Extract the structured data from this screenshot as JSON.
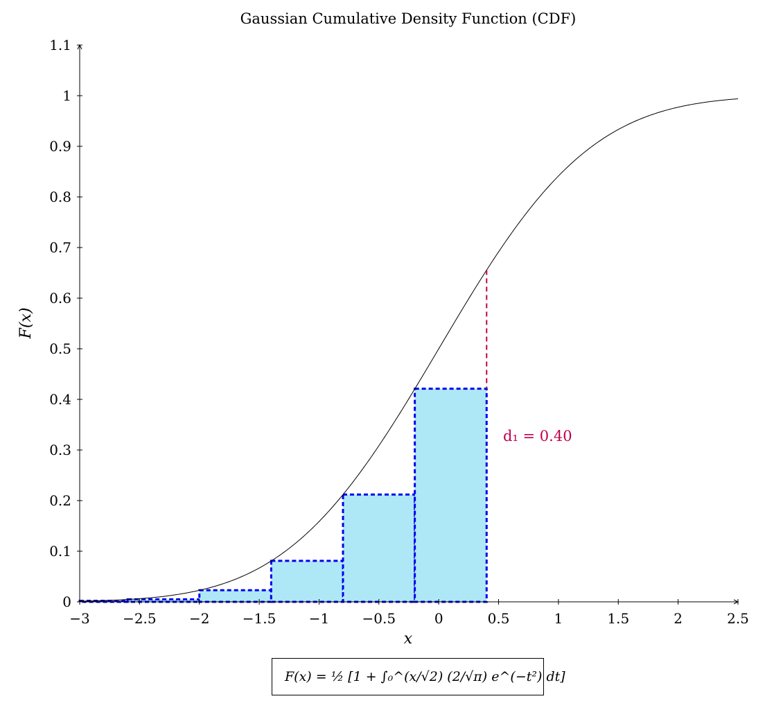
{
  "chart_data": {
    "type": "line",
    "title": "Gaussian Cumulative Density Function (CDF)",
    "xlabel": "x",
    "ylabel": "F(x)",
    "xlim": [
      -3,
      2.5
    ],
    "ylim": [
      0,
      1.1
    ],
    "x_ticks": [
      "−3",
      "−2.5",
      "−2",
      "−1.5",
      "−1",
      "−0.5",
      "0",
      "0.5",
      "1",
      "1.5",
      "2",
      "2.5"
    ],
    "x_tick_values": [
      -3,
      -2.5,
      -2,
      -1.5,
      -1,
      -0.5,
      0,
      0.5,
      1,
      1.5,
      2,
      2.5
    ],
    "y_ticks": [
      "0",
      "0.1",
      "0.2",
      "0.3",
      "0.4",
      "0.5",
      "0.6",
      "0.7",
      "0.8",
      "0.9",
      "1",
      "1.1"
    ],
    "y_tick_values": [
      0,
      0.1,
      0.2,
      0.3,
      0.4,
      0.5,
      0.6,
      0.7,
      0.8,
      0.9,
      1,
      1.1
    ],
    "grid": false,
    "series": [
      {
        "name": "F(x) = ½ [1 + ∫₀^(x/√2) (2/√π) e^(−t²) dt]",
        "function": "normal_cdf",
        "color": "#000000"
      }
    ],
    "rectangles": {
      "fill_color": "#aee8f7",
      "edge_color": "#0000ee",
      "bars": [
        {
          "x0": -3.0,
          "x1": -2.6,
          "height": 0.002
        },
        {
          "x0": -2.6,
          "x1": -2.0,
          "height": 0.005
        },
        {
          "x0": -2.0,
          "x1": -1.4,
          "height": 0.023
        },
        {
          "x0": -1.4,
          "x1": -0.8,
          "height": 0.081
        },
        {
          "x0": -0.8,
          "x1": -0.2,
          "height": 0.212
        },
        {
          "x0": -0.2,
          "x1": 0.4,
          "height": 0.421
        }
      ]
    },
    "marker_line": {
      "x": 0.4,
      "color": "#c0004a"
    },
    "annotation": {
      "text": "d₁ = 0.40",
      "color": "#c0004a"
    },
    "legend_placement": "bottom-center"
  }
}
